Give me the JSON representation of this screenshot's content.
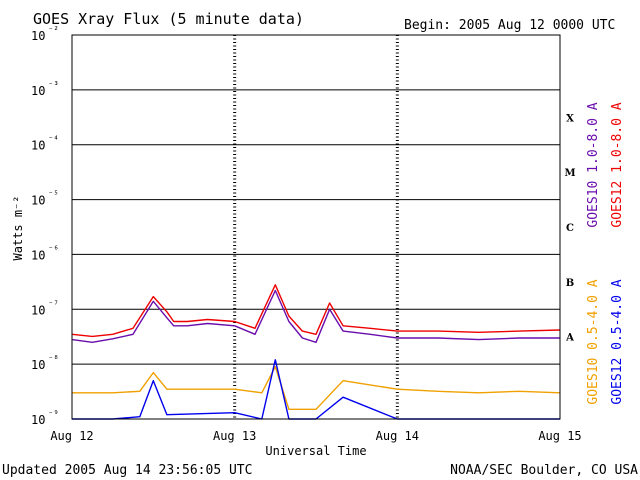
{
  "header": {
    "title": "GOES Xray Flux (5 minute data)",
    "begin": "Begin:  2005 Aug 12 0000 UTC"
  },
  "footer": {
    "updated": "Updated 2005 Aug 14 23:56:05 UTC",
    "source": "NOAA/SEC Boulder, CO USA"
  },
  "chart_data": {
    "type": "line",
    "title": "GOES Xray Flux (5 minute data)",
    "xlabel": "Universal Time",
    "ylabel": "Watts m⁻²",
    "y_scale": "log",
    "ylim": [
      1e-09,
      0.01
    ],
    "xlim": [
      "2005-08-12 00:00",
      "2005-08-15 00:00"
    ],
    "x_tick_labels": [
      "Aug 12",
      "Aug 13",
      "Aug 14",
      "Aug 15"
    ],
    "y_tick_labels": [
      "10⁻⁹",
      "10⁻⁸",
      "10⁻⁷",
      "10⁻⁶",
      "10⁻⁵",
      "10⁻⁴",
      "10⁻³",
      "10⁻²"
    ],
    "flare_classes": [
      "A",
      "B",
      "C",
      "M",
      "X"
    ],
    "grid": "horizontal lines at each decade",
    "legend_placement": "right side, vertical",
    "series": [
      {
        "name": "GOES10 1.0-8.0 A",
        "color": "#6a0dad",
        "x": [
          "2005-08-12 00:00",
          "2005-08-12 03:00",
          "2005-08-12 06:00",
          "2005-08-12 09:00",
          "2005-08-12 12:00",
          "2005-08-12 14:00",
          "2005-08-12 15:00",
          "2005-08-12 17:00",
          "2005-08-12 20:00",
          "2005-08-13 00:00",
          "2005-08-13 03:00",
          "2005-08-13 06:00",
          "2005-08-13 08:00",
          "2005-08-13 10:00",
          "2005-08-13 12:00",
          "2005-08-13 14:00",
          "2005-08-13 16:00",
          "2005-08-13 20:00",
          "2005-08-14 00:00",
          "2005-08-14 06:00",
          "2005-08-14 12:00",
          "2005-08-14 18:00",
          "2005-08-15 00:00"
        ],
        "values": [
          2.8e-08,
          2.5e-08,
          2.9e-08,
          3.5e-08,
          1.4e-07,
          7e-08,
          5e-08,
          5e-08,
          5.5e-08,
          5e-08,
          3.5e-08,
          2.2e-07,
          6e-08,
          3e-08,
          2.5e-08,
          1e-07,
          4e-08,
          3.5e-08,
          3e-08,
          3e-08,
          2.8e-08,
          3e-08,
          3e-08
        ]
      },
      {
        "name": "GOES12 1.0-8.0 A",
        "color": "#ee0000",
        "x": [
          "2005-08-12 00:00",
          "2005-08-12 03:00",
          "2005-08-12 06:00",
          "2005-08-12 09:00",
          "2005-08-12 12:00",
          "2005-08-12 14:00",
          "2005-08-12 15:00",
          "2005-08-12 17:00",
          "2005-08-12 20:00",
          "2005-08-13 00:00",
          "2005-08-13 03:00",
          "2005-08-13 06:00",
          "2005-08-13 08:00",
          "2005-08-13 10:00",
          "2005-08-13 12:00",
          "2005-08-13 14:00",
          "2005-08-13 16:00",
          "2005-08-13 20:00",
          "2005-08-14 00:00",
          "2005-08-14 06:00",
          "2005-08-14 12:00",
          "2005-08-14 18:00",
          "2005-08-15 00:00"
        ],
        "values": [
          3.5e-08,
          3.2e-08,
          3.5e-08,
          4.5e-08,
          1.7e-07,
          9e-08,
          6e-08,
          6e-08,
          6.5e-08,
          6e-08,
          4.5e-08,
          2.8e-07,
          7.5e-08,
          4e-08,
          3.5e-08,
          1.3e-07,
          5e-08,
          4.5e-08,
          4e-08,
          4e-08,
          3.8e-08,
          4e-08,
          4.2e-08
        ]
      },
      {
        "name": "GOES10 0.5-4.0 A",
        "color": "#f0a000",
        "x": [
          "2005-08-12 00:00",
          "2005-08-12 06:00",
          "2005-08-12 10:00",
          "2005-08-12 12:00",
          "2005-08-12 14:00",
          "2005-08-13 00:00",
          "2005-08-13 04:00",
          "2005-08-13 06:00",
          "2005-08-13 08:00",
          "2005-08-13 12:00",
          "2005-08-13 16:00",
          "2005-08-14 00:00",
          "2005-08-14 06:00",
          "2005-08-14 12:00",
          "2005-08-14 18:00",
          "2005-08-15 00:00"
        ],
        "values": [
          3e-09,
          3e-09,
          3.2e-09,
          7e-09,
          3.5e-09,
          3.5e-09,
          3e-09,
          9e-09,
          1.5e-09,
          1.5e-09,
          5e-09,
          3.5e-09,
          3.2e-09,
          3e-09,
          3.2e-09,
          3e-09
        ]
      },
      {
        "name": "GOES12 0.5-4.0 A",
        "color": "#0000ee",
        "x": [
          "2005-08-12 00:00",
          "2005-08-12 06:00",
          "2005-08-12 10:00",
          "2005-08-12 12:00",
          "2005-08-12 14:00",
          "2005-08-13 00:00",
          "2005-08-13 04:00",
          "2005-08-13 06:00",
          "2005-08-13 08:00",
          "2005-08-13 12:00",
          "2005-08-13 16:00",
          "2005-08-14 00:00",
          "2005-08-14 06:00",
          "2005-08-14 12:00",
          "2005-08-14 18:00",
          "2005-08-15 00:00"
        ],
        "values": [
          1e-09,
          1e-09,
          1.1e-09,
          5e-09,
          1.2e-09,
          1.3e-09,
          1e-09,
          1.2e-08,
          1e-09,
          1e-09,
          2.5e-09,
          1e-09,
          1e-09,
          1e-09,
          1e-09,
          1e-09
        ]
      }
    ]
  }
}
